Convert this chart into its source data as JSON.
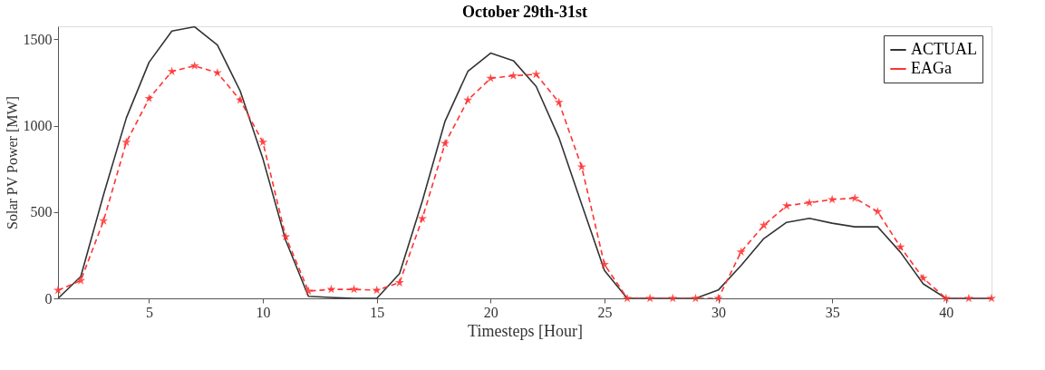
{
  "chart_data": {
    "type": "line",
    "title": "October 29th-31st",
    "xlabel": "Timesteps [Hour]",
    "ylabel": "Solar PV Power [MW]",
    "x": [
      1,
      2,
      3,
      4,
      5,
      6,
      7,
      8,
      9,
      10,
      11,
      12,
      13,
      14,
      15,
      16,
      17,
      18,
      19,
      20,
      21,
      22,
      23,
      24,
      25,
      26,
      27,
      28,
      29,
      30,
      31,
      32,
      33,
      34,
      35,
      36,
      37,
      38,
      39,
      40,
      41,
      42
    ],
    "series": [
      {
        "name": "ACTUAL",
        "color": "#333333",
        "marker": "none",
        "line_style": "solid",
        "values": [
          0,
          126,
          600,
          1044,
          1367,
          1547,
          1572,
          1467,
          1201,
          808,
          336,
          12,
          5,
          0,
          0,
          143,
          563,
          1026,
          1314,
          1420,
          1376,
          1227,
          930,
          545,
          162,
          0,
          0,
          0,
          0,
          48,
          190,
          346,
          440,
          463,
          435,
          414,
          414,
          267,
          84,
          0,
          0,
          0
        ]
      },
      {
        "name": "EAGa",
        "color": "#ff3333",
        "marker": "star",
        "line_style": "dashed",
        "values": [
          47,
          103,
          449,
          904,
          1157,
          1314,
          1346,
          1306,
          1148,
          904,
          357,
          42,
          52,
          52,
          47,
          91,
          462,
          897,
          1148,
          1274,
          1289,
          1297,
          1135,
          761,
          196,
          0,
          0,
          0,
          0,
          0,
          269,
          423,
          536,
          554,
          572,
          580,
          502,
          297,
          117,
          0,
          0,
          0
        ]
      }
    ],
    "xlim": [
      1,
      42
    ],
    "xticks": [
      5,
      10,
      15,
      20,
      25,
      30,
      35,
      40
    ],
    "ylim": [
      0,
      1575
    ],
    "yticks": [
      0,
      500,
      1000,
      1500
    ],
    "grid": false,
    "legend": "top right"
  }
}
